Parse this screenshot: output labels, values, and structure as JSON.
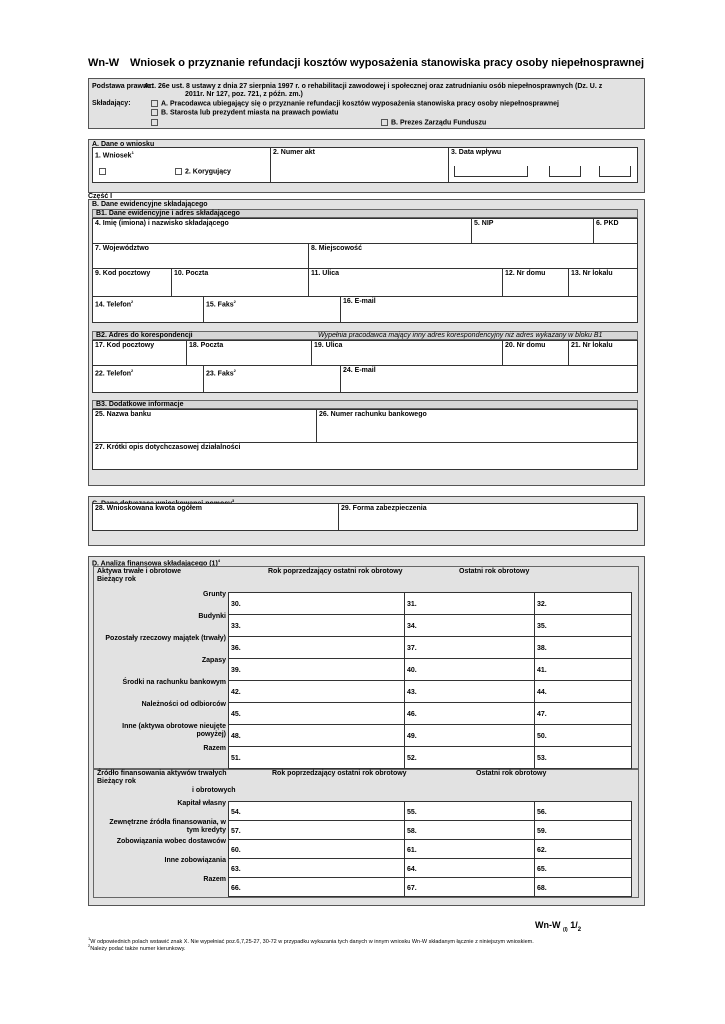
{
  "title": {
    "code": "Wn-W",
    "text": "Wniosek  o przyznanie refundacji kosztów wyposażenia stanowiska pracy osoby niepełnosprawnej"
  },
  "header": {
    "legal_label": "Podstawa prawna:",
    "legal_text": "Art. 26e ust. 8 ustawy z dnia 27 sierpnia 1997 r. o rehabilitacji zawodowej i społecznej oraz  zatrudnianiu osób   niepełnosprawnych (Dz. U. z",
    "legal_text2": "2011r. Nr 127, poz. 721, z późn. zm.)",
    "submitter_label": "Składający:",
    "opt_a": "A. Pracodawca ubiegający się o przyznanie refundacji kosztów wyposażenia stanowiska pracy osoby niepełnosprawnej",
    "opt_b": "B. Starosta lub prezydent miasta na prawach powiatu",
    "opt_c": "B. Prezes Zarządu Funduszu"
  },
  "sectionA": {
    "title": "A. Dane o wniosku",
    "f1": "1. Wniosek",
    "f1_sup": "1",
    "f1_opt2": "2. Korygujący",
    "f2": "2. Numer akt",
    "f3": "3. Data wpływu"
  },
  "part": "Część I",
  "sectionB": {
    "title": "B. Dane ewidencyjne składającego",
    "b1": "B1. Dane ewidencyjne i adres składającego",
    "f4": "4. Imię (imiona) i nazwisko składającego",
    "f5": "5. NIP",
    "f6": "6. PKD",
    "f7": "7. Województwo",
    "f8": "8. Miejscowość",
    "f9": "9. Kod pocztowy",
    "f10": "10. Poczta",
    "f11": "11. Ulica",
    "f12": "12. Nr domu",
    "f13": "13. Nr lokalu",
    "f14": "14. Telefon",
    "f15": "15. Faks",
    "f16": "16. E-mail",
    "sup2": "2",
    "b2": "B2. Adres do korespondencji",
    "b2_note": "Wypełnia pracodawca mający inny adres korespondencyjny niż adres wykazany w bloku B1",
    "f17": "17. Kod pocztowy",
    "f18": "18. Poczta",
    "f19": "19. Ulica",
    "f20": "20. Nr domu",
    "f21": "21. Nr lokalu",
    "f22": "22. Telefon",
    "f23": "23. Faks",
    "f24": "24. E-mail",
    "b3": "B3. Dodatkowe informacje",
    "f25": "25. Nazwa banku",
    "f26": "26. Numer rachunku bankowego",
    "f27": "27. Krótki opis dotychczasowej działalności"
  },
  "sectionC": {
    "title": "C. Dane dotyczące wnioskowanej pomocy",
    "sup": "3",
    "f28": "28. Wnioskowana kwota ogółem",
    "f29": "29. Forma zabezpieczenia"
  },
  "sectionD": {
    "title": "D. Analiza finansowa składającego (1)",
    "sup": "4",
    "part1": {
      "h1": "Aktywa trwałe i obrotowe",
      "h1b": "Bieżący rok",
      "h2": "Rok poprzedzający ostatni rok obrotowy",
      "h3": "Ostatni rok obrotowy",
      "rows": [
        {
          "label": "Grunty",
          "n": [
            "30.",
            "31.",
            "32."
          ]
        },
        {
          "label": "Budynki",
          "n": [
            "33.",
            "34.",
            "35."
          ]
        },
        {
          "label": "Pozostały rzeczowy majątek (trwały)",
          "n": [
            "36.",
            "37.",
            "38."
          ]
        },
        {
          "label": "Zapasy",
          "n": [
            "39.",
            "40.",
            "41."
          ]
        },
        {
          "label": "Środki na rachunku bankowym",
          "n": [
            "42.",
            "43.",
            "44."
          ]
        },
        {
          "label": "Należności od odbiorców",
          "n": [
            "45.",
            "46.",
            "47."
          ]
        },
        {
          "label": "Inne (aktywa obrotowe nieujęte powyżej)",
          "n": [
            "48.",
            "49.",
            "50."
          ]
        },
        {
          "label": "Razem",
          "n": [
            "51.",
            "52.",
            "53."
          ]
        }
      ]
    },
    "part2": {
      "h1": "Źródło finansowania  aktywów trwałych",
      "h1b": "Bieżący rok",
      "h1c": "i obrotowych",
      "h2": "Rok poprzedzający ostatni rok obrotowy",
      "h3": "Ostatni rok obrotowy",
      "rows": [
        {
          "label": "Kapitał własny",
          "n": [
            "54.",
            "55.",
            "56."
          ]
        },
        {
          "label": "Zewnętrzne źródła finansowania, w tym kredyty",
          "n": [
            "57.",
            "58.",
            "59."
          ]
        },
        {
          "label": "Zobowiązania wobec dostawców",
          "n": [
            "60.",
            "61.",
            "62."
          ]
        },
        {
          "label": "Inne zobowiązania",
          "n": [
            "63.",
            "64.",
            "65."
          ]
        },
        {
          "label": "Razem",
          "n": [
            "66.",
            "67.",
            "68."
          ]
        }
      ]
    }
  },
  "footer": {
    "code": "Wn-W",
    "sub": "(I)",
    "page": "1/",
    "page_sub": "2",
    "note1_sup": "1",
    "note1": "W odpowiednich polach wstawić znak X. Nie wypełniać poz.6,7,25-27, 30-72 w przypadku wykazania tych danych w innym wniosku Wn-W składanym łącznie z niniejszym wnioskiem.",
    "note2_sup": "2",
    "note2": "Należy podać także numer kierunkowy."
  }
}
